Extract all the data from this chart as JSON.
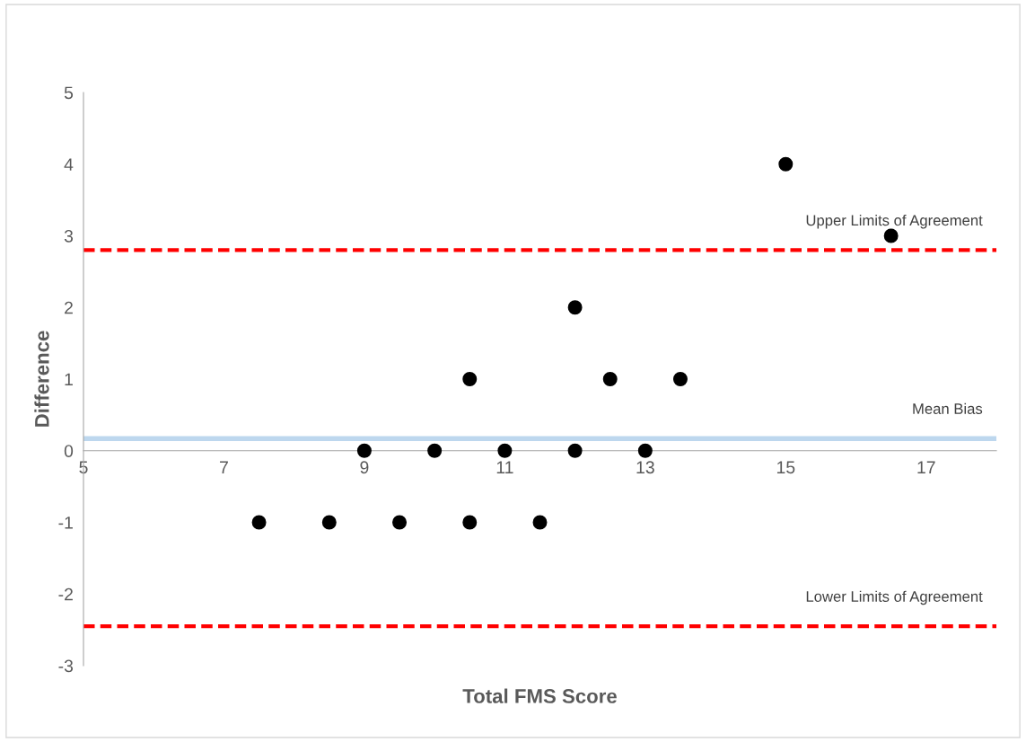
{
  "chart_data": {
    "type": "scatter",
    "xlabel": "Total FMS Score",
    "ylabel": "Difference",
    "series": [
      {
        "color": "#000000",
        "x": [
          7.5,
          8.5,
          9.5,
          10.5,
          11.5,
          9,
          10,
          11,
          12,
          13,
          10.5,
          12.5,
          13.5,
          12,
          15,
          16.5
        ],
        "values": [
          -1,
          -1,
          -1,
          -1,
          -1,
          0,
          0,
          0,
          0,
          0,
          1,
          1,
          1,
          2,
          4,
          3
        ]
      }
    ],
    "xlim": [
      5,
      18
    ],
    "xticks": [
      5,
      7,
      9,
      11,
      13,
      15,
      17
    ],
    "ylim": [
      -3,
      5
    ],
    "yticks": [
      -3,
      -2,
      -1,
      0,
      1,
      2,
      3,
      4,
      5
    ],
    "ref_lines": [
      {
        "axis": "y",
        "value": 2.8,
        "label": "Upper Limits of Agreement",
        "color": "#ff0000",
        "line_style": "dashed"
      },
      {
        "axis": "y",
        "value": 0.17,
        "label": "Mean Bias",
        "color": "#bdd7ee",
        "line_style": "solid"
      },
      {
        "axis": "y",
        "value": -2.45,
        "label": "Lower Limits of Agreement",
        "color": "#ff0000",
        "line_style": "dashed"
      }
    ],
    "marker": "circle",
    "grid": false,
    "legend": false
  }
}
